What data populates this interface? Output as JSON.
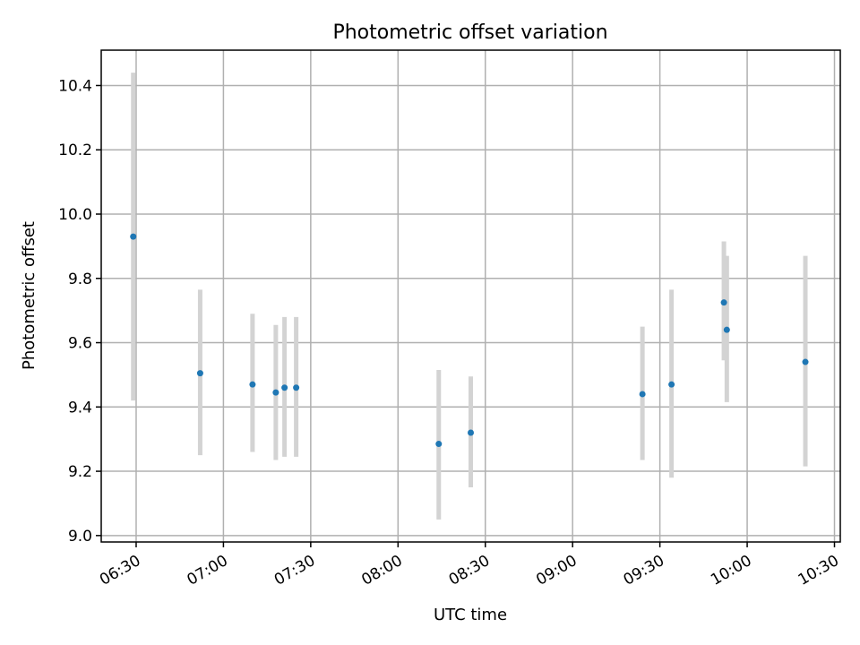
{
  "chart_data": {
    "type": "scatter",
    "title": "Photometric offset variation",
    "xlabel": "UTC time",
    "ylabel": "Photometric offset",
    "xlim": [
      "06:18",
      "10:32"
    ],
    "ylim": [
      8.98,
      10.51
    ],
    "x_ticks": [
      "06:30",
      "07:00",
      "07:30",
      "08:00",
      "08:30",
      "09:00",
      "09:30",
      "10:00",
      "10:30"
    ],
    "y_ticks": [
      "9.0",
      "9.2",
      "9.4",
      "9.6",
      "9.8",
      "10.0",
      "10.2",
      "10.4"
    ],
    "grid": true,
    "series": [
      {
        "colors": {
          "point": "#1f77b4",
          "error_bar": "#d3d3d3"
        },
        "points": [
          {
            "x": "06:29",
            "y": 9.93,
            "y_low": 9.42,
            "y_high": 10.44
          },
          {
            "x": "06:52",
            "y": 9.505,
            "y_low": 9.25,
            "y_high": 9.765
          },
          {
            "x": "07:10",
            "y": 9.47,
            "y_low": 9.26,
            "y_high": 9.69
          },
          {
            "x": "07:18",
            "y": 9.445,
            "y_low": 9.235,
            "y_high": 9.655
          },
          {
            "x": "07:21",
            "y": 9.46,
            "y_low": 9.245,
            "y_high": 9.68
          },
          {
            "x": "07:25",
            "y": 9.46,
            "y_low": 9.245,
            "y_high": 9.68
          },
          {
            "x": "08:14",
            "y": 9.285,
            "y_low": 9.05,
            "y_high": 9.515
          },
          {
            "x": "08:25",
            "y": 9.32,
            "y_low": 9.15,
            "y_high": 9.495
          },
          {
            "x": "09:24",
            "y": 9.44,
            "y_low": 9.235,
            "y_high": 9.65
          },
          {
            "x": "09:34",
            "y": 9.47,
            "y_low": 9.18,
            "y_high": 9.765
          },
          {
            "x": "09:52",
            "y": 9.725,
            "y_low": 9.545,
            "y_high": 9.915
          },
          {
            "x": "09:53",
            "y": 9.64,
            "y_low": 9.415,
            "y_high": 9.87
          },
          {
            "x": "10:20",
            "y": 9.54,
            "y_low": 9.215,
            "y_high": 9.87
          }
        ]
      }
    ]
  }
}
